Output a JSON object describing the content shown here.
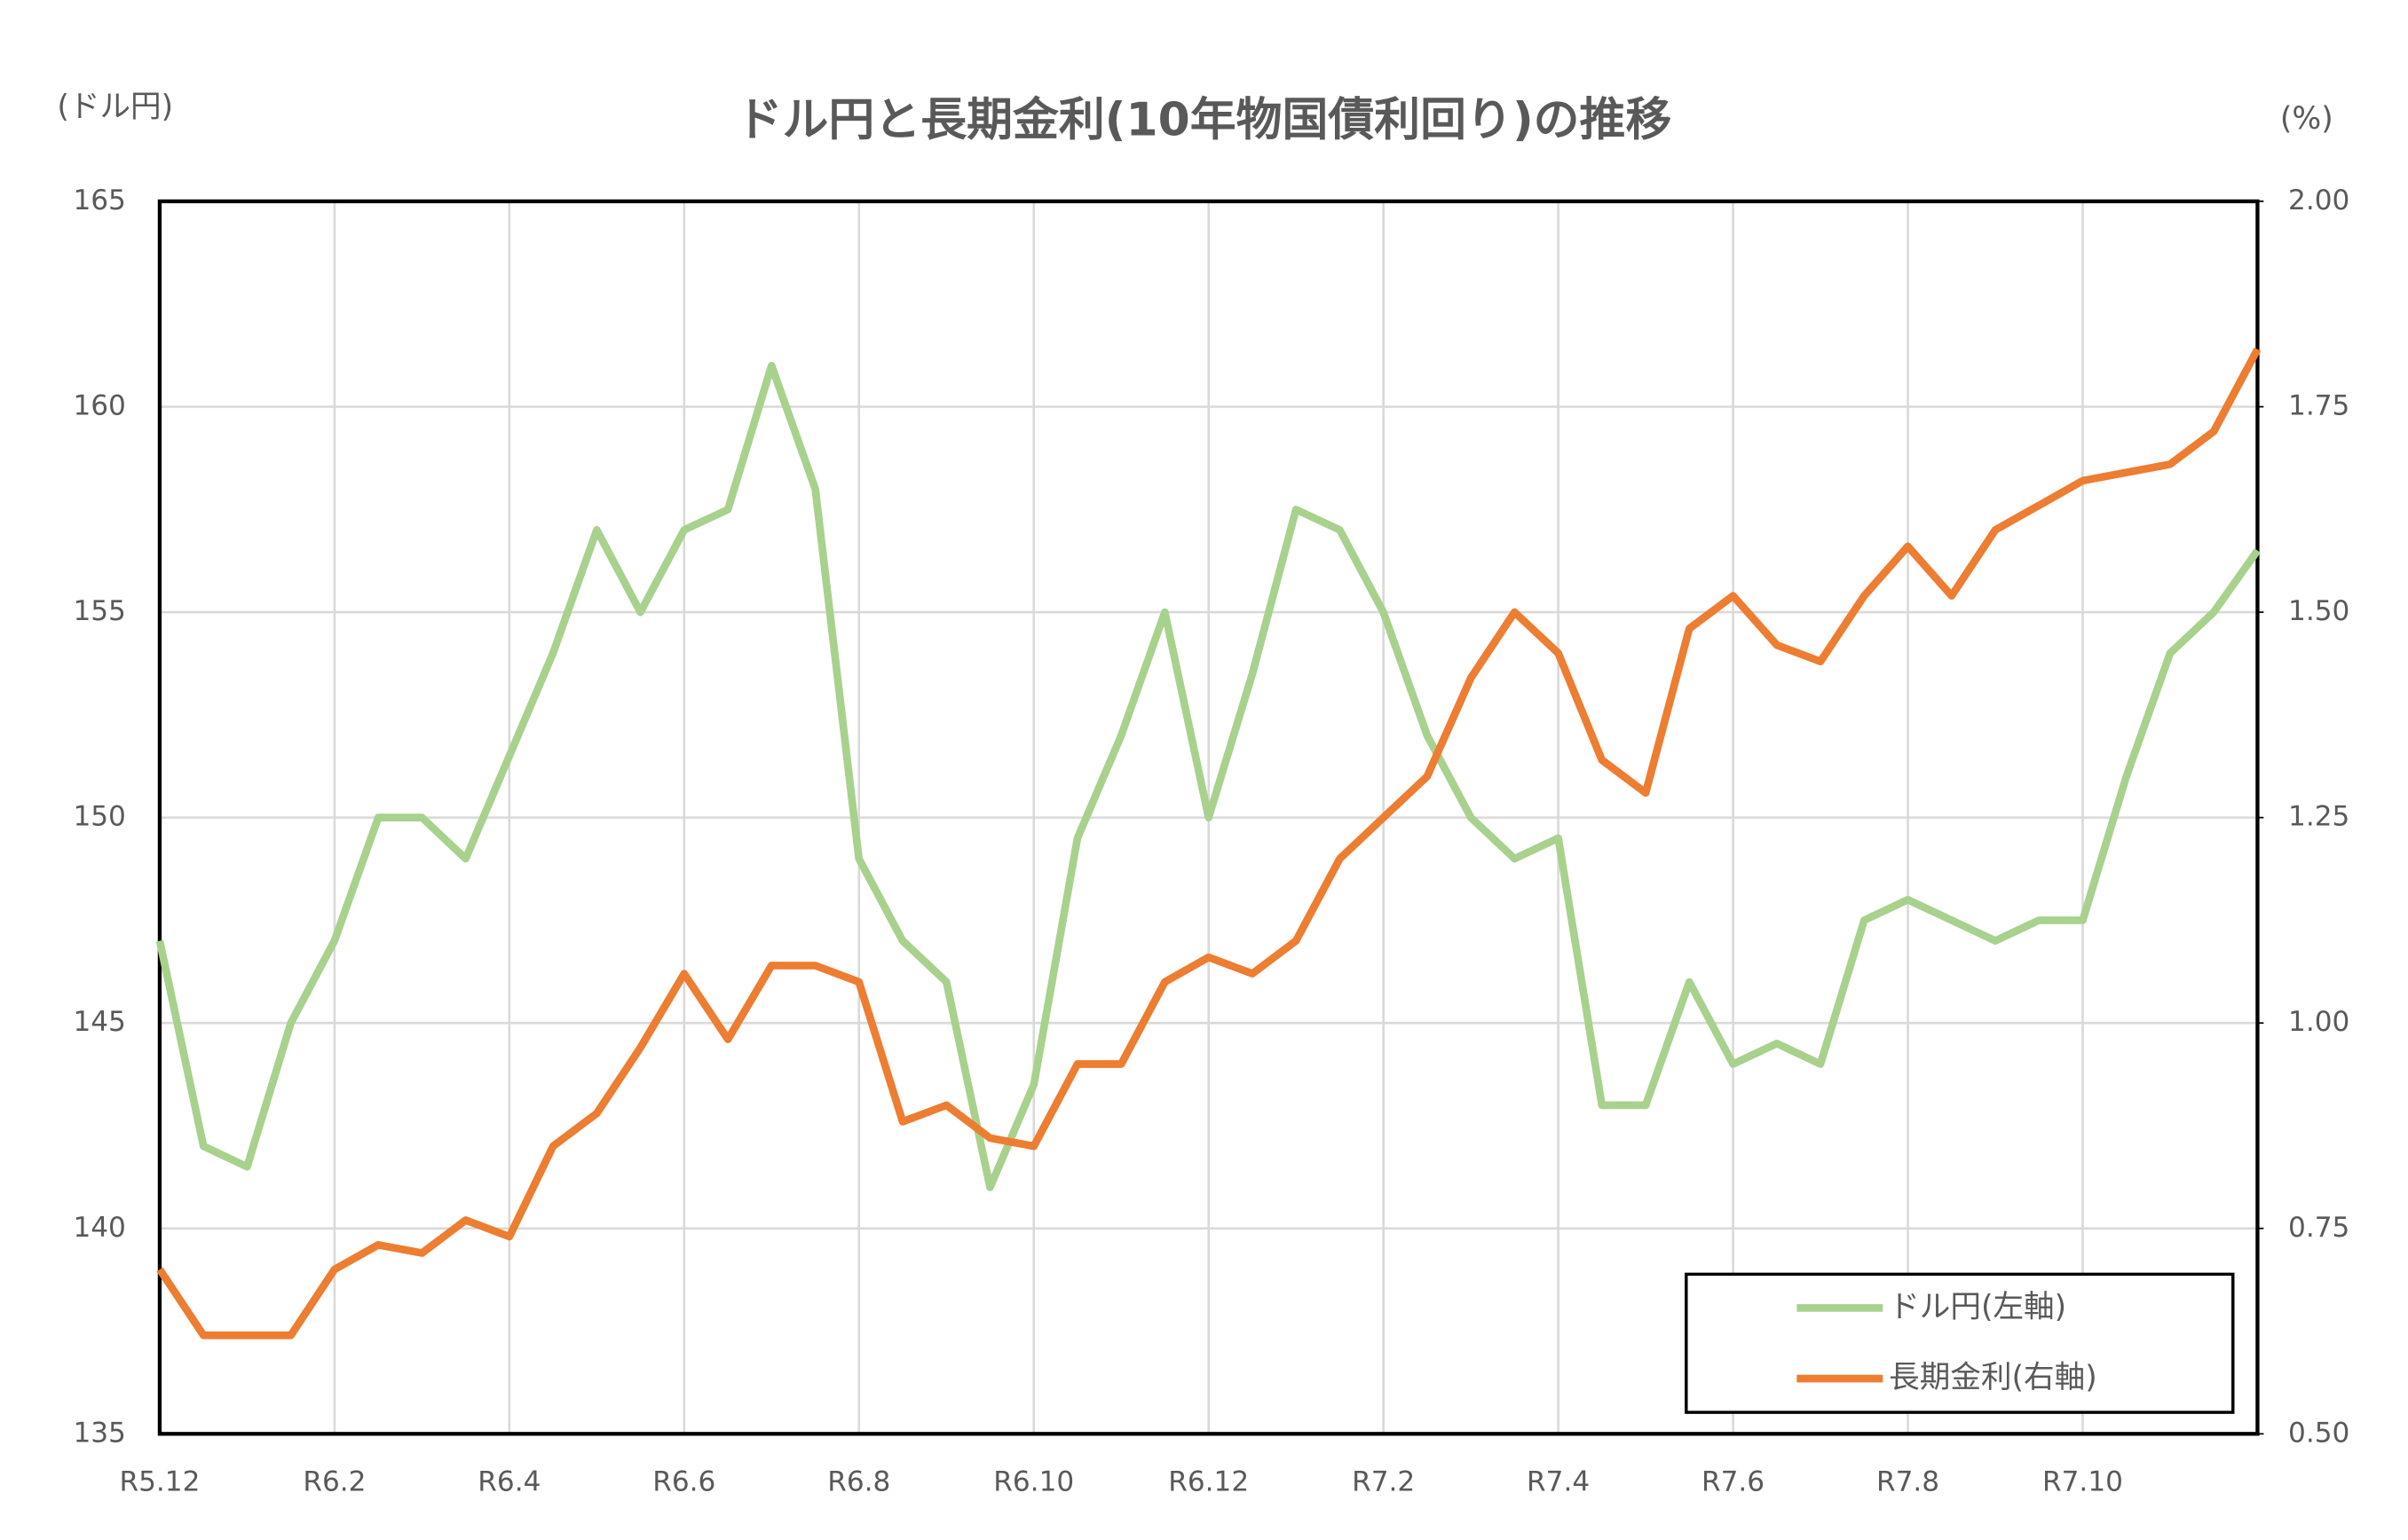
{
  "chart_data": {
    "type": "line",
    "title": "ドル円と長期金利(10年物国債利回り)の推移",
    "y_label": "(ドル円)",
    "y2_label": "(%)",
    "categories": [
      "R5.12",
      null,
      null,
      null,
      "R6.2",
      null,
      null,
      null,
      "R6.4",
      null,
      null,
      null,
      "R6.6",
      null,
      null,
      null,
      "R6.8",
      null,
      null,
      null,
      "R6.10",
      null,
      null,
      null,
      "R6.12",
      null,
      null,
      null,
      "R7.2",
      null,
      null,
      null,
      "R7.4",
      null,
      null,
      null,
      "R7.6",
      null,
      null,
      null,
      "R7.8",
      null,
      null,
      null,
      "R7.10",
      null,
      null,
      null,
      null
    ],
    "series": [
      {
        "name": "ドル円(左軸)",
        "color": "#a9d18e",
        "values": [
          147,
          142,
          141.5,
          145,
          147,
          150,
          150,
          149,
          151.5,
          154,
          157,
          155,
          157,
          157.5,
          161,
          158,
          149,
          147,
          146,
          141,
          143.5,
          149.5,
          152,
          155,
          150,
          153.5,
          157.5,
          157,
          155,
          152,
          150,
          149,
          149.5,
          143,
          143,
          146,
          144,
          144.5,
          144,
          147.5,
          148,
          147.5,
          147,
          147.5,
          147.5,
          151,
          154,
          155,
          156.5
        ]
      },
      {
        "name": "長期金利(右軸)",
        "color": "#ed7d31",
        "axis": "y2",
        "values": [
          0.7,
          0.62,
          0.62,
          0.62,
          0.7,
          0.73,
          0.72,
          0.76,
          0.74,
          0.85,
          0.89,
          0.97,
          1.06,
          0.98,
          1.07,
          1.07,
          1.05,
          0.88,
          0.9,
          0.86,
          0.85,
          0.95,
          0.95,
          1.05,
          1.08,
          1.06,
          1.1,
          1.2,
          1.25,
          1.3,
          1.42,
          1.5,
          1.45,
          1.32,
          1.28,
          1.48,
          1.52,
          1.46,
          1.44,
          1.52,
          1.58,
          1.52,
          1.6,
          1.63,
          1.66,
          1.67,
          1.68,
          1.72,
          1.82
        ]
      }
    ],
    "ylim": [
      135,
      165
    ],
    "yticks": [
      135,
      140,
      145,
      150,
      155,
      160,
      165
    ],
    "y2lim": [
      0.5,
      2.0
    ],
    "y2ticks": [
      {
        "value": 0.5,
        "label": "0.50"
      },
      {
        "value": 0.75,
        "label": "0.75"
      },
      {
        "value": 1.0,
        "label": "1.00"
      },
      {
        "value": 1.25,
        "label": "1.25"
      },
      {
        "value": 1.5,
        "label": "1.50"
      },
      {
        "value": 1.75,
        "label": "1.75"
      },
      {
        "value": 2.0,
        "label": "2.00"
      }
    ],
    "grid": true,
    "legend": "bottom-right"
  }
}
